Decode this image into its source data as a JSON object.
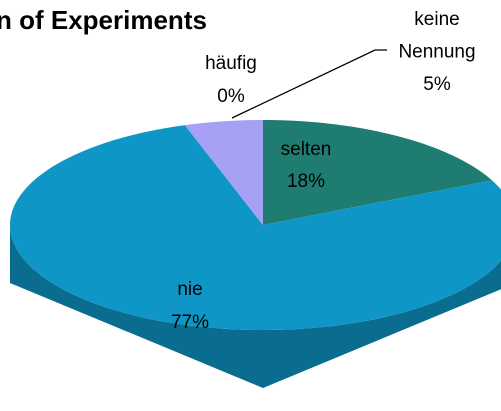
{
  "chart_data": {
    "type": "pie3d",
    "title": "n of Experiments",
    "categories": [
      "selten",
      "nie",
      "häufig",
      "keine Nennung"
    ],
    "values": [
      18,
      77,
      0,
      5
    ],
    "value_labels": [
      "18%",
      "77%",
      "0%",
      "5%"
    ],
    "colors": [
      "#1e7d70",
      "#0e97c6",
      "#a6a1f4",
      "#a6a1f4"
    ]
  }
}
